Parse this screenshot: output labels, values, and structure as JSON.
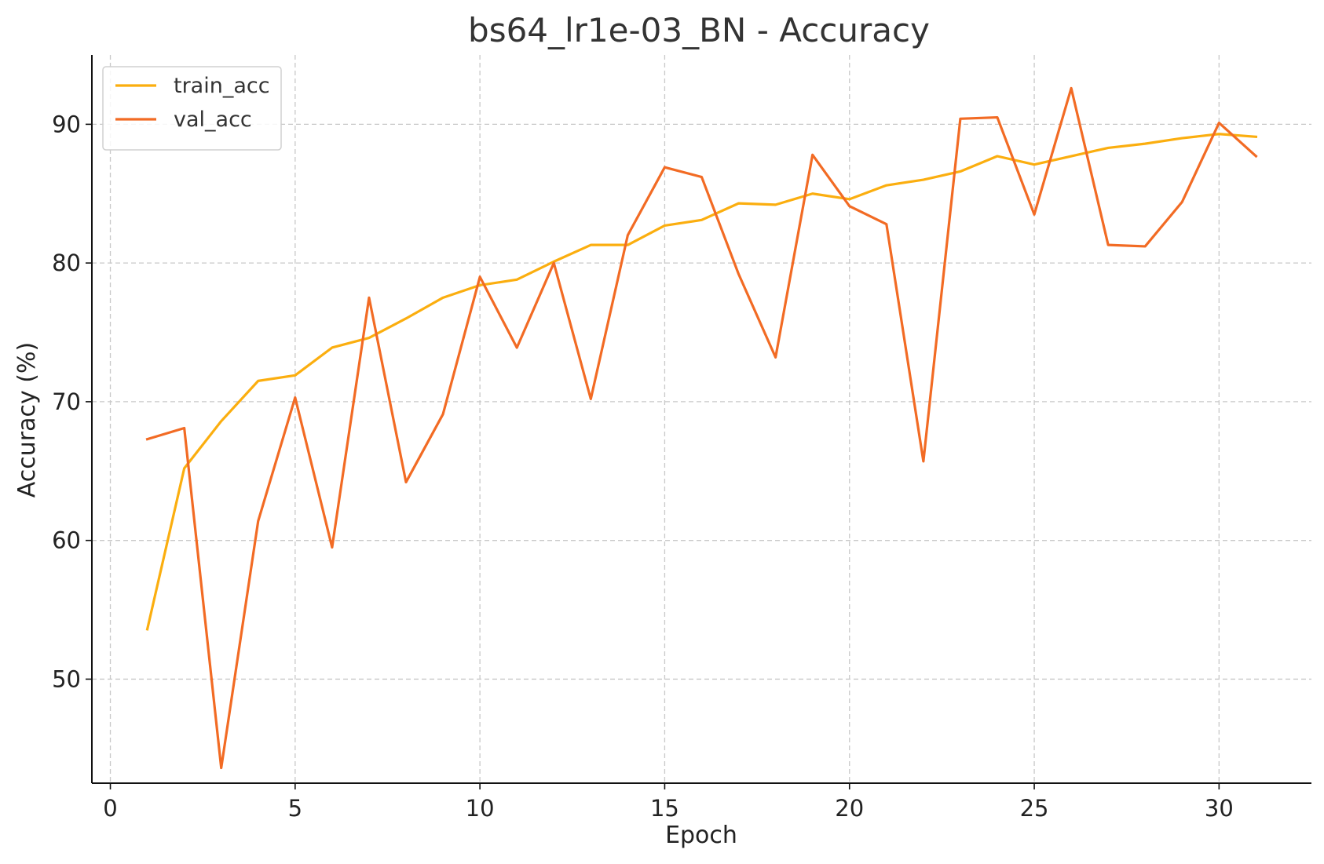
{
  "chart_data": {
    "type": "line",
    "title": "bs64_lr1e-03_BN - Accuracy",
    "xlabel": "Epoch",
    "ylabel": "Accuracy (%)",
    "xlim": [
      -0.5,
      32.5
    ],
    "ylim": [
      42.5,
      95
    ],
    "xticks": [
      0,
      5,
      10,
      15,
      20,
      25,
      30
    ],
    "yticks": [
      50,
      60,
      70,
      80,
      90
    ],
    "grid": true,
    "legend_position": "top-left",
    "x": [
      1,
      2,
      3,
      4,
      5,
      6,
      7,
      8,
      9,
      10,
      11,
      12,
      13,
      14,
      15,
      16,
      17,
      18,
      19,
      20,
      21,
      22,
      23,
      24,
      25,
      26,
      27,
      28,
      29,
      30,
      31
    ],
    "series": [
      {
        "name": "train_acc",
        "color": "#FBAE0F",
        "values": [
          53.6,
          65.2,
          68.6,
          71.5,
          71.9,
          73.9,
          74.6,
          76.0,
          77.5,
          78.4,
          78.8,
          80.1,
          81.3,
          81.3,
          82.7,
          83.1,
          84.3,
          84.2,
          85.0,
          84.6,
          85.6,
          86.0,
          86.6,
          87.7,
          87.1,
          87.7,
          88.3,
          88.6,
          89.0,
          89.3,
          89.1
        ]
      },
      {
        "name": "val_acc",
        "color": "#F26B24",
        "values": [
          67.3,
          68.1,
          43.6,
          61.4,
          70.3,
          59.5,
          77.5,
          64.2,
          69.1,
          79.0,
          73.9,
          80.0,
          70.2,
          82.0,
          86.9,
          86.2,
          79.2,
          73.2,
          87.8,
          84.1,
          82.8,
          65.7,
          90.4,
          90.5,
          83.5,
          92.6,
          81.3,
          81.2,
          84.4,
          90.1,
          87.7
        ]
      }
    ]
  }
}
